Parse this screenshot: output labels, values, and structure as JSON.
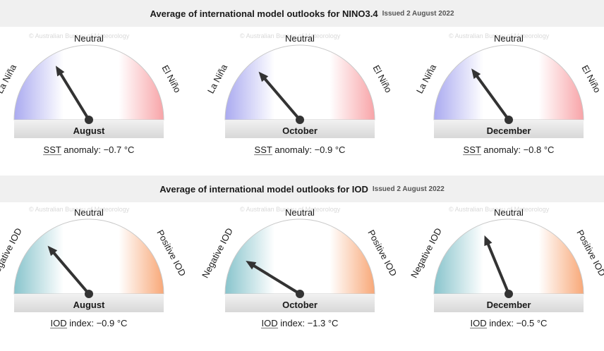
{
  "watermark": "© Australian Bureau of Meteorology",
  "sections": [
    {
      "title": "Average of international model outlooks for NINO3.4",
      "issued": "Issued 2 August 2022",
      "neutral_label": "Neutral",
      "left_label": "La Niña",
      "right_label": "El Niño",
      "colors": {
        "left": "#aaaaf0",
        "right": "#f8a4a8"
      },
      "readout_abbr": "SST",
      "readout_label": "anomaly:",
      "gauges": [
        {
          "month": "August",
          "value_text": "−0.7 °C"
        },
        {
          "month": "October",
          "value_text": "−0.9 °C"
        },
        {
          "month": "December",
          "value_text": "−0.8 °C"
        }
      ]
    },
    {
      "title": "Average of international model outlooks for IOD",
      "issued": "Issued 2 August 2022",
      "neutral_label": "Neutral",
      "left_label": "Negative IOD",
      "right_label": "Positive IOD",
      "colors": {
        "left": "#88c4cc",
        "right": "#f8a878"
      },
      "readout_abbr": "IOD",
      "readout_label": "index:",
      "gauges": [
        {
          "month": "August",
          "value_text": "−0.9 °C"
        },
        {
          "month": "October",
          "value_text": "−1.3 °C"
        },
        {
          "month": "December",
          "value_text": "−0.5 °C"
        }
      ]
    }
  ],
  "chart_data": [
    {
      "type": "gauge",
      "title": "Average of international model outlooks for NINO3.4",
      "categories": [
        "August",
        "October",
        "December"
      ],
      "values": [
        -0.7,
        -0.9,
        -0.8
      ],
      "unit": "°C",
      "scale_labels": [
        "La Niña",
        "Neutral",
        "El Niño"
      ]
    },
    {
      "type": "gauge",
      "title": "Average of international model outlooks for IOD",
      "categories": [
        "August",
        "October",
        "December"
      ],
      "values": [
        -0.9,
        -1.3,
        -0.5
      ],
      "unit": "°C",
      "scale_labels": [
        "Negative IOD",
        "Neutral",
        "Positive IOD"
      ]
    }
  ]
}
